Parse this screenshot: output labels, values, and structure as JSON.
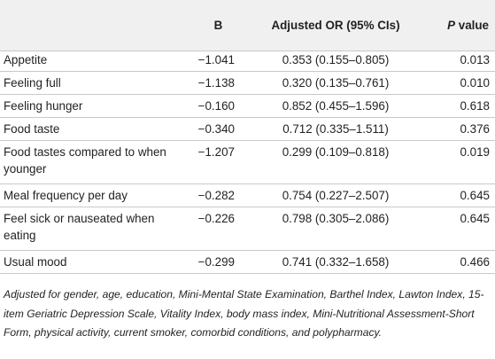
{
  "table": {
    "headers": {
      "variable": "",
      "b": "B",
      "or": "Adjusted OR (95% CIs)",
      "p_italic": "P",
      "p_rest": " value"
    },
    "rows": [
      {
        "variable": "Appetite",
        "b": "−1.041",
        "or": "0.353 (0.155–0.805)",
        "p": "0.013"
      },
      {
        "variable": "Feeling full",
        "b": "−1.138",
        "or": "0.320 (0.135–0.761)",
        "p": "0.010"
      },
      {
        "variable": "Feeling hunger",
        "b": "−0.160",
        "or": "0.852 (0.455–1.596)",
        "p": "0.618"
      },
      {
        "variable": "Food taste",
        "b": "−0.340",
        "or": "0.712 (0.335–1.511)",
        "p": "0.376"
      },
      {
        "variable": "Food tastes compared to when younger",
        "b": "−1.207",
        "or": "0.299 (0.109–0.818)",
        "p": "0.019"
      },
      {
        "variable": "Meal frequency per day",
        "b": "−0.282",
        "or": "0.754 (0.227–2.507)",
        "p": "0.645"
      },
      {
        "variable": "Feel sick or nauseated when eating",
        "b": "−0.226",
        "or": "0.798 (0.305–2.086)",
        "p": "0.645"
      },
      {
        "variable": "Usual mood",
        "b": "−0.299",
        "or": "0.741 (0.332–1.658)",
        "p": "0.466"
      }
    ]
  },
  "footnote": "Adjusted for gender, age, education, Mini-Mental State Examination, Barthel Index, Lawton Index, 15-item Geriatric Depression Scale, Vitality Index, body mass index, Mini-Nutritional Assessment-Short Form, physical activity, current smoker, comorbid conditions, and polypharmacy."
}
